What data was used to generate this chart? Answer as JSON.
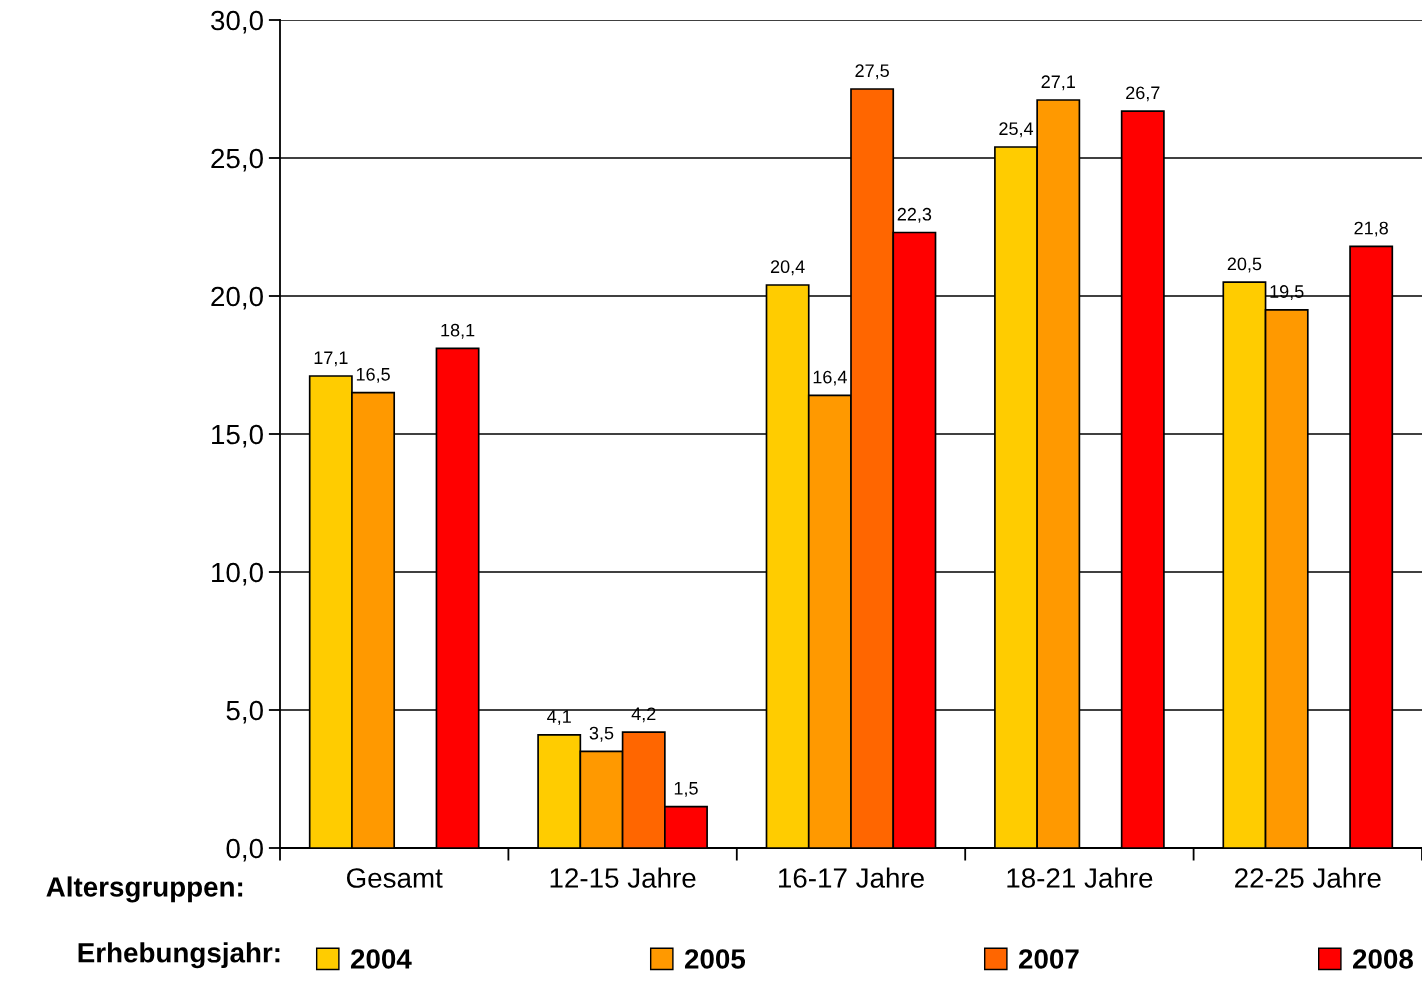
{
  "chart_data": {
    "type": "bar",
    "xlabel": "Altersgruppen:",
    "legend_title": "Erhebungsjahr:",
    "categories": [
      "Gesamt",
      "12-15 Jahre",
      "16-17 Jahre",
      "18-21 Jahre",
      "22-25 Jahre"
    ],
    "series": [
      {
        "name": "2004",
        "color": "#ffcc00",
        "values": [
          17.1,
          4.1,
          20.4,
          25.4,
          20.5
        ],
        "value_labels": [
          "17,1",
          "4,1",
          "20,4",
          "25,4",
          "20,5"
        ]
      },
      {
        "name": "2005",
        "color": "#ff9900",
        "values": [
          16.5,
          3.5,
          16.4,
          27.1,
          19.5
        ],
        "value_labels": [
          "16,5",
          "3,5",
          "16,4",
          "27,1",
          "19,5"
        ]
      },
      {
        "name": "2007",
        "color": "#ff6600",
        "values": [
          null,
          4.2,
          27.5,
          null,
          null
        ],
        "value_labels": [
          null,
          "4,2",
          "27,5",
          null,
          null
        ]
      },
      {
        "name": "2008",
        "color": "#ff0000",
        "values": [
          18.1,
          1.5,
          22.3,
          26.7,
          21.8
        ],
        "value_labels": [
          "18,1",
          "1,5",
          "22,3",
          "26,7",
          "21,8"
        ]
      }
    ],
    "ylim": [
      0,
      30
    ],
    "yticks": [
      {
        "value": 0,
        "label": "0,0"
      },
      {
        "value": 5,
        "label": "5,0"
      },
      {
        "value": 10,
        "label": "10,0"
      },
      {
        "value": 15,
        "label": "15,0"
      },
      {
        "value": 20,
        "label": "20,0"
      },
      {
        "value": 25,
        "label": "25,0"
      },
      {
        "value": 30,
        "label": "30,0"
      }
    ],
    "grid": "y",
    "legend": "bottom"
  }
}
